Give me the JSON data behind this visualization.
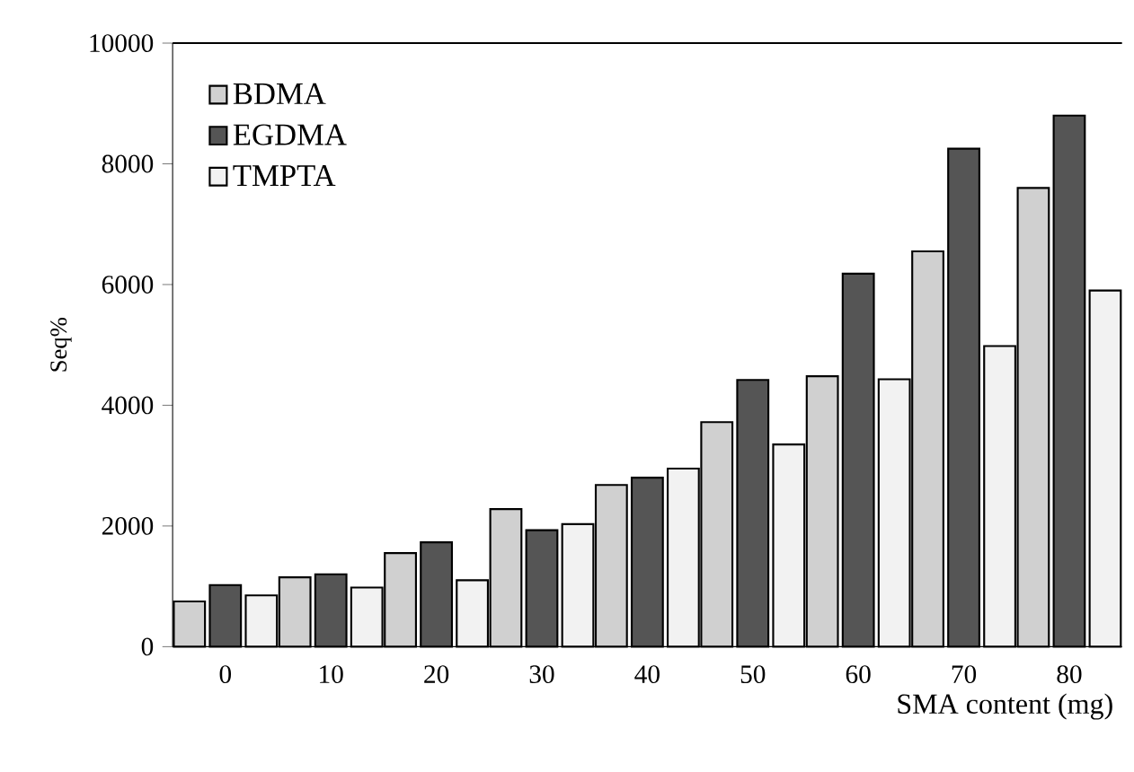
{
  "chart_data": {
    "type": "bar",
    "xlabel": "SMA content (mg)",
    "ylabel": "Seq%",
    "categories": [
      "0",
      "10",
      "20",
      "30",
      "40",
      "50",
      "60",
      "70",
      "80"
    ],
    "series": [
      {
        "name": "BDMA",
        "color": "#d0d0d0",
        "values": [
          750,
          1150,
          1550,
          2280,
          2680,
          3720,
          4480,
          6550,
          7600
        ]
      },
      {
        "name": "EGDMA",
        "color": "#555555",
        "values": [
          1020,
          1200,
          1730,
          1930,
          2800,
          4420,
          6180,
          8250,
          8800
        ]
      },
      {
        "name": "TMPTA",
        "color": "#f2f2f2",
        "values": [
          850,
          980,
          1100,
          2030,
          2950,
          3350,
          4430,
          4980,
          5900
        ]
      }
    ],
    "ylim": [
      0,
      10000
    ],
    "yticks": [
      0,
      2000,
      4000,
      6000,
      8000,
      10000
    ],
    "legend": "top left",
    "grid": false
  }
}
